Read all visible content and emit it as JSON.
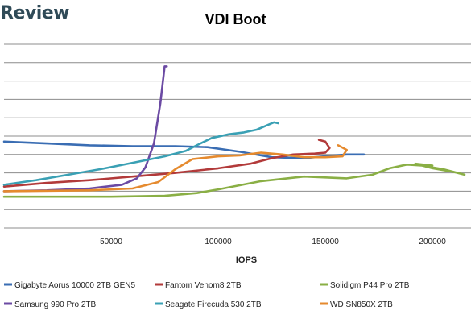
{
  "watermark": "Review",
  "chart_data": {
    "type": "line",
    "title": "VDI Boot",
    "xlabel": "IOPS",
    "ylabel": "",
    "xlim": [
      0,
      218000
    ],
    "ylim": [
      0,
      10
    ],
    "xticks": [
      50000,
      100000,
      150000,
      200000
    ],
    "xtick_labels": [
      "50000",
      "100000",
      "150000",
      "200000"
    ],
    "yticks": [
      0,
      1,
      2,
      3,
      4,
      5,
      6,
      7,
      8,
      9,
      10
    ],
    "grid": "horizontal",
    "legend_position": "bottom",
    "series": [
      {
        "name": "Gigabyte Aorus 10000 2TB GEN5",
        "color": "#3a6db3",
        "points": [
          [
            0,
            4.7
          ],
          [
            20000,
            4.6
          ],
          [
            40000,
            4.5
          ],
          [
            60000,
            4.45
          ],
          [
            80000,
            4.45
          ],
          [
            95000,
            4.4
          ],
          [
            110000,
            4.15
          ],
          [
            125000,
            3.85
          ],
          [
            140000,
            3.8
          ],
          [
            150000,
            3.9
          ],
          [
            160000,
            4.0
          ],
          [
            168000,
            4.0
          ]
        ]
      },
      {
        "name": "Fantom Venom8 2TB",
        "color": "#b23a3a",
        "points": [
          [
            0,
            2.25
          ],
          [
            20000,
            2.45
          ],
          [
            40000,
            2.6
          ],
          [
            60000,
            2.8
          ],
          [
            80000,
            3.0
          ],
          [
            100000,
            3.25
          ],
          [
            115000,
            3.5
          ],
          [
            125000,
            3.8
          ],
          [
            135000,
            4.0
          ],
          [
            145000,
            4.05
          ],
          [
            150000,
            4.1
          ],
          [
            152000,
            4.35
          ],
          [
            150000,
            4.7
          ],
          [
            147000,
            4.8
          ]
        ]
      },
      {
        "name": "Solidigm P44 Pro 2TB",
        "color": "#8aaf45",
        "points": [
          [
            0,
            1.7
          ],
          [
            50000,
            1.7
          ],
          [
            75000,
            1.75
          ],
          [
            90000,
            1.9
          ],
          [
            100000,
            2.1
          ],
          [
            120000,
            2.55
          ],
          [
            140000,
            2.8
          ],
          [
            160000,
            2.7
          ],
          [
            172000,
            2.9
          ],
          [
            180000,
            3.25
          ],
          [
            188000,
            3.45
          ],
          [
            195000,
            3.4
          ],
          [
            205000,
            3.2
          ],
          [
            215000,
            2.9
          ],
          [
            210000,
            3.05
          ],
          [
            200000,
            3.25
          ],
          [
            192000,
            3.5
          ],
          [
            200000,
            3.4
          ]
        ]
      },
      {
        "name": "Samsung 990 Pro 2TB",
        "color": "#6b4aa3",
        "points": [
          [
            0,
            2.0
          ],
          [
            20000,
            2.05
          ],
          [
            40000,
            2.15
          ],
          [
            55000,
            2.35
          ],
          [
            62000,
            2.7
          ],
          [
            66000,
            3.3
          ],
          [
            70000,
            4.6
          ],
          [
            73000,
            6.8
          ],
          [
            75000,
            8.8
          ],
          [
            76000,
            8.8
          ]
        ]
      },
      {
        "name": "Seagate Firecuda 530 2TB",
        "color": "#3aa0b4",
        "points": [
          [
            0,
            2.35
          ],
          [
            15000,
            2.6
          ],
          [
            30000,
            2.9
          ],
          [
            45000,
            3.2
          ],
          [
            60000,
            3.55
          ],
          [
            75000,
            3.9
          ],
          [
            85000,
            4.2
          ],
          [
            90000,
            4.5
          ],
          [
            97000,
            4.9
          ],
          [
            105000,
            5.1
          ],
          [
            112000,
            5.2
          ],
          [
            118000,
            5.35
          ],
          [
            123000,
            5.6
          ],
          [
            126000,
            5.75
          ],
          [
            128000,
            5.7
          ]
        ]
      },
      {
        "name": "WD SN850X 2TB",
        "color": "#e58a2e",
        "points": [
          [
            0,
            2.0
          ],
          [
            40000,
            2.05
          ],
          [
            60000,
            2.15
          ],
          [
            72000,
            2.5
          ],
          [
            80000,
            3.2
          ],
          [
            88000,
            3.75
          ],
          [
            100000,
            3.9
          ],
          [
            110000,
            3.95
          ],
          [
            120000,
            4.1
          ],
          [
            130000,
            4.0
          ],
          [
            140000,
            3.85
          ],
          [
            150000,
            3.85
          ],
          [
            158000,
            3.9
          ],
          [
            160000,
            4.25
          ],
          [
            156000,
            4.5
          ]
        ]
      }
    ]
  }
}
